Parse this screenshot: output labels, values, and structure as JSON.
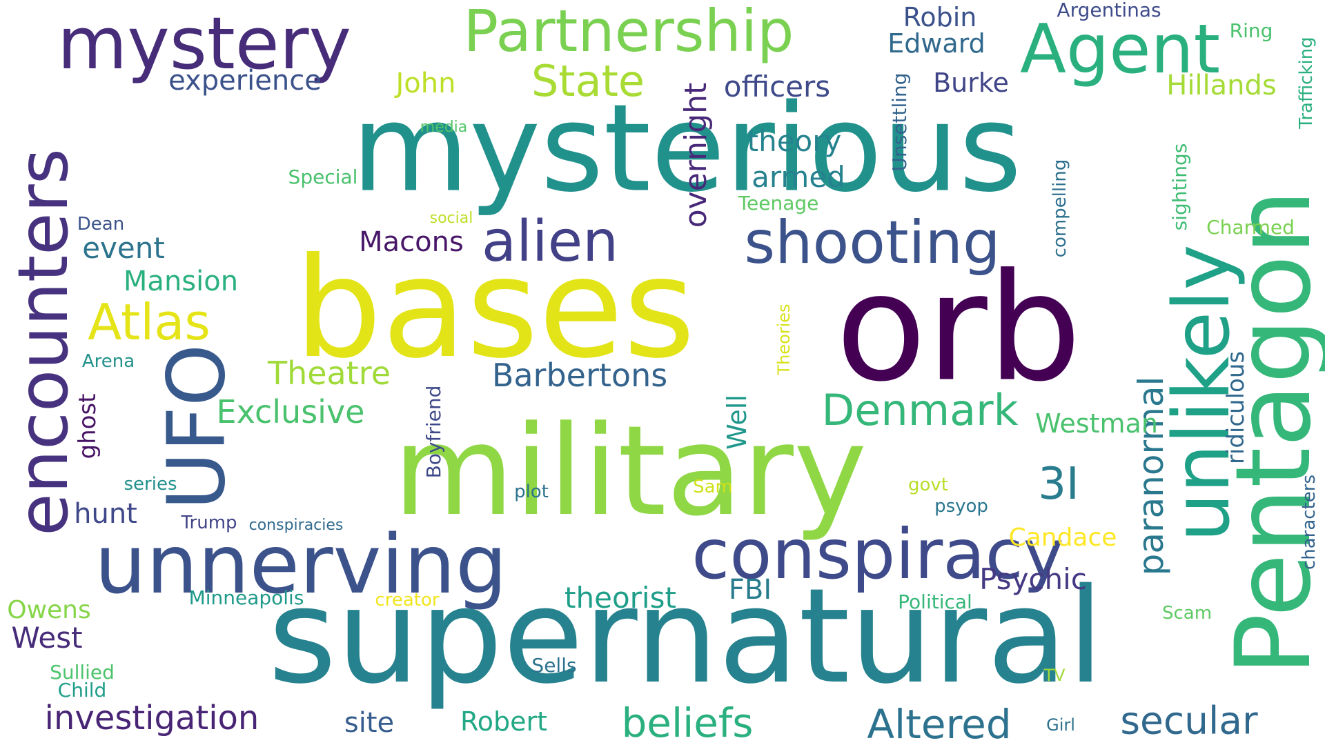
{
  "words": [
    {
      "text": "mysterious",
      "color": "#21918c"
    },
    {
      "text": "supernatural",
      "color": "#26828e"
    },
    {
      "text": "military",
      "color": "#8fd744"
    },
    {
      "text": "bases",
      "color": "#e3e418"
    },
    {
      "text": "orb",
      "color": "#440154"
    },
    {
      "text": "mystery",
      "color": "#472c7a"
    },
    {
      "text": "Partnership",
      "color": "#7ad151"
    },
    {
      "text": "Agent",
      "color": "#2ab07f"
    },
    {
      "text": "unnerving",
      "color": "#3b528b"
    },
    {
      "text": "conspiracy",
      "color": "#3e4a89"
    },
    {
      "text": "Pentagon",
      "color": "#35b779"
    },
    {
      "text": "unlikely",
      "color": "#1fa187"
    },
    {
      "text": "UFO",
      "color": "#38598c"
    },
    {
      "text": "encounters",
      "color": "#46327e"
    },
    {
      "text": "shooting",
      "color": "#3b528b"
    },
    {
      "text": "alien",
      "color": "#424086"
    },
    {
      "text": "Atlas",
      "color": "#e5e419"
    },
    {
      "text": "State",
      "color": "#a8db34"
    },
    {
      "text": "Denmark",
      "color": "#35b779"
    },
    {
      "text": "3I",
      "color": "#287c8e"
    },
    {
      "text": "Altered",
      "color": "#2c728e"
    },
    {
      "text": "beliefs",
      "color": "#2ab07f"
    },
    {
      "text": "secular",
      "color": "#31688e"
    },
    {
      "text": "investigation",
      "color": "#482475"
    },
    {
      "text": "paranormal",
      "color": "#2a788e"
    },
    {
      "text": "overnight",
      "color": "#482878"
    },
    {
      "text": "Barbertons",
      "color": "#33638d"
    },
    {
      "text": "Theatre",
      "color": "#a0da39"
    },
    {
      "text": "Exclusive",
      "color": "#4ac16d"
    },
    {
      "text": "officers",
      "color": "#3e4a89"
    },
    {
      "text": "theory",
      "color": "#25838e"
    },
    {
      "text": "armed",
      "color": "#26828e"
    },
    {
      "text": "Mansion",
      "color": "#2ab07f"
    },
    {
      "text": "event",
      "color": "#2c738e"
    },
    {
      "text": "experience",
      "color": "#3b528b"
    },
    {
      "text": "John",
      "color": "#bddf26"
    },
    {
      "text": "Robin",
      "color": "#3b528b"
    },
    {
      "text": "Edward",
      "color": "#30698e"
    },
    {
      "text": "Burke",
      "color": "#404588"
    },
    {
      "text": "Hillands",
      "color": "#a5db36"
    },
    {
      "text": "Macons",
      "color": "#481769"
    },
    {
      "text": "Westman",
      "color": "#4ac16d"
    },
    {
      "text": "theorist",
      "color": "#1f9e89"
    },
    {
      "text": "Psychic",
      "color": "#443983"
    },
    {
      "text": "FBI",
      "color": "#287c8e"
    },
    {
      "text": "West",
      "color": "#472c7a"
    },
    {
      "text": "Owens",
      "color": "#86d549"
    },
    {
      "text": "hunt",
      "color": "#3f4889"
    },
    {
      "text": "ghost",
      "color": "#471365"
    },
    {
      "text": "Well",
      "color": "#1f988b"
    },
    {
      "text": "ridiculous",
      "color": "#31688e"
    },
    {
      "text": "Candace",
      "color": "#fde725"
    },
    {
      "text": "site",
      "color": "#365d8d"
    },
    {
      "text": "Robert",
      "color": "#22a884"
    },
    {
      "text": "Argentinas",
      "color": "#3e4c8a"
    },
    {
      "text": "Ring",
      "color": "#4ac16d"
    },
    {
      "text": "Trafficking",
      "color": "#2ab07f"
    },
    {
      "text": "Unsettling",
      "color": "#33638d"
    },
    {
      "text": "compelling",
      "color": "#2d708e"
    },
    {
      "text": "sightings",
      "color": "#3fbc73"
    },
    {
      "text": "Charmed",
      "color": "#7ad151"
    },
    {
      "text": "Special",
      "color": "#4ac16d"
    },
    {
      "text": "media",
      "color": "#52c569"
    },
    {
      "text": "Teenage",
      "color": "#5ec962"
    },
    {
      "text": "Dean",
      "color": "#3b528b"
    },
    {
      "text": "social",
      "color": "#bddf26"
    },
    {
      "text": "Arena",
      "color": "#21918c"
    },
    {
      "text": "Theories",
      "color": "#d8e219"
    },
    {
      "text": "Boyfriend",
      "color": "#3e4989"
    },
    {
      "text": "series",
      "color": "#21918c"
    },
    {
      "text": "plot",
      "color": "#2c728e"
    },
    {
      "text": "Sam",
      "color": "#d0e11c"
    },
    {
      "text": "govt",
      "color": "#b8de29"
    },
    {
      "text": "psyop",
      "color": "#2a768e"
    },
    {
      "text": "Trump",
      "color": "#414487"
    },
    {
      "text": "conspiracies",
      "color": "#306a8e"
    },
    {
      "text": "characters",
      "color": "#33638d"
    },
    {
      "text": "Minneapolis",
      "color": "#1f9a8a"
    },
    {
      "text": "creator",
      "color": "#f1e51d"
    },
    {
      "text": "Political",
      "color": "#35b779"
    },
    {
      "text": "Scam",
      "color": "#5ec962"
    },
    {
      "text": "Sells",
      "color": "#2c728e"
    },
    {
      "text": "TV",
      "color": "#a0da39"
    },
    {
      "text": "Sullied",
      "color": "#4ec36b"
    },
    {
      "text": "Child",
      "color": "#1f9e89"
    },
    {
      "text": "Girl",
      "color": "#2c728e"
    }
  ]
}
